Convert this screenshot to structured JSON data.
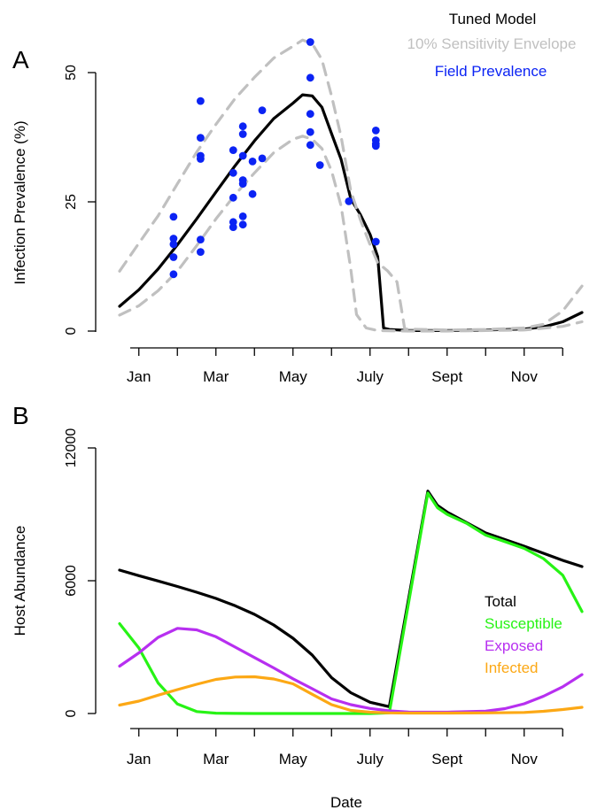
{
  "chart_data": [
    {
      "type": "line",
      "panel_label": "A",
      "ylabel": "Infection Prevalence (%)",
      "xlabel": "",
      "x_unit": "month",
      "xlim": [
        0.5,
        12.5
      ],
      "ylim": [
        0,
        50
      ],
      "x_ticks": [
        1,
        2,
        3,
        4,
        5,
        6,
        7,
        8,
        9,
        10,
        11,
        12
      ],
      "x_tick_labels": [
        {
          "x": 1,
          "label": "Jan"
        },
        {
          "x": 3,
          "label": "Mar"
        },
        {
          "x": 5,
          "label": "May"
        },
        {
          "x": 7,
          "label": "July"
        },
        {
          "x": 9,
          "label": "Sept"
        },
        {
          "x": 11,
          "label": "Nov"
        }
      ],
      "y_ticks": [
        0,
        25,
        50
      ],
      "legend_position": "top-right",
      "series": [
        {
          "name": "Tuned Model",
          "color": "#000000",
          "style": "solid",
          "points": [
            [
              0.5,
              4.8
            ],
            [
              1.0,
              8.0
            ],
            [
              1.5,
              12.0
            ],
            [
              2.0,
              16.7
            ],
            [
              2.5,
              21.7
            ],
            [
              3.0,
              26.9
            ],
            [
              3.5,
              32.0
            ],
            [
              4.0,
              36.8
            ],
            [
              4.5,
              41.1
            ],
            [
              5.0,
              44.1
            ],
            [
              5.25,
              45.7
            ],
            [
              5.5,
              45.5
            ],
            [
              5.75,
              43.3
            ],
            [
              6.0,
              38.2
            ],
            [
              6.25,
              33.2
            ],
            [
              6.5,
              25.6
            ],
            [
              6.75,
              22.5
            ],
            [
              7.0,
              18.7
            ],
            [
              7.2,
              14.4
            ],
            [
              7.35,
              0.6
            ],
            [
              7.5,
              0.3
            ],
            [
              8.0,
              0.1
            ],
            [
              9.0,
              0.1
            ],
            [
              10.0,
              0.2
            ],
            [
              11.0,
              0.4
            ],
            [
              11.5,
              0.8
            ],
            [
              12.0,
              1.8
            ],
            [
              12.5,
              3.6
            ]
          ]
        },
        {
          "name": "10% Sensitivity Envelope",
          "color": "#c0c0c0",
          "style": "dashed",
          "points": [
            [
              0.5,
              11.6
            ],
            [
              1.0,
              17.0
            ],
            [
              1.5,
              22.3
            ],
            [
              2.0,
              28.5
            ],
            [
              2.5,
              34.6
            ],
            [
              3.0,
              40.0
            ],
            [
              3.5,
              45.0
            ],
            [
              4.0,
              49.1
            ],
            [
              4.5,
              52.8
            ],
            [
              5.0,
              55.1
            ],
            [
              5.25,
              56.3
            ],
            [
              5.5,
              55.6
            ],
            [
              5.75,
              52.5
            ],
            [
              6.0,
              45.5
            ],
            [
              6.25,
              37.6
            ],
            [
              6.5,
              27.1
            ],
            [
              6.75,
              21.5
            ],
            [
              7.0,
              16.7
            ],
            [
              7.2,
              13.2
            ],
            [
              7.45,
              11.7
            ],
            [
              7.7,
              9.5
            ],
            [
              7.9,
              0.4
            ],
            [
              8.5,
              0.3
            ],
            [
              9.0,
              0.2
            ],
            [
              10.0,
              0.3
            ],
            [
              11.0,
              0.6
            ],
            [
              11.5,
              1.3
            ],
            [
              12.0,
              3.9
            ],
            [
              12.5,
              8.7
            ]
          ]
        },
        {
          "name": "10% Sensitivity Envelope",
          "color": "#c0c0c0",
          "style": "dashed",
          "legend": false,
          "points": [
            [
              0.5,
              3.1
            ],
            [
              1.0,
              4.9
            ],
            [
              1.5,
              7.8
            ],
            [
              2.0,
              11.6
            ],
            [
              2.5,
              16.5
            ],
            [
              3.0,
              21.7
            ],
            [
              3.5,
              26.4
            ],
            [
              4.0,
              30.6
            ],
            [
              4.5,
              34.5
            ],
            [
              5.0,
              37.1
            ],
            [
              5.25,
              37.7
            ],
            [
              5.5,
              37.1
            ],
            [
              5.75,
              35.3
            ],
            [
              6.0,
              31.0
            ],
            [
              6.25,
              24.2
            ],
            [
              6.5,
              12.0
            ],
            [
              6.65,
              3.2
            ],
            [
              6.9,
              0.6
            ],
            [
              7.2,
              0.1
            ],
            [
              8.0,
              0.0
            ],
            [
              9.0,
              0.0
            ],
            [
              10.0,
              0.1
            ],
            [
              11.0,
              0.2
            ],
            [
              12.0,
              0.9
            ],
            [
              12.5,
              1.8
            ]
          ]
        }
      ],
      "scatter": {
        "name": "Field Prevalence",
        "color": "#0b23f4",
        "points": [
          [
            1.9,
            22.1
          ],
          [
            1.9,
            17.9
          ],
          [
            1.9,
            16.8
          ],
          [
            1.9,
            14.3
          ],
          [
            1.9,
            11.0
          ],
          [
            2.6,
            44.5
          ],
          [
            2.6,
            37.4
          ],
          [
            2.6,
            33.9
          ],
          [
            2.6,
            33.3
          ],
          [
            2.6,
            17.7
          ],
          [
            2.6,
            15.3
          ],
          [
            3.45,
            35.0
          ],
          [
            3.45,
            30.6
          ],
          [
            3.45,
            25.8
          ],
          [
            3.45,
            21.1
          ],
          [
            3.45,
            20.1
          ],
          [
            3.7,
            39.6
          ],
          [
            3.7,
            38.1
          ],
          [
            3.7,
            33.9
          ],
          [
            3.7,
            29.2
          ],
          [
            3.7,
            28.5
          ],
          [
            3.7,
            22.2
          ],
          [
            3.7,
            20.6
          ],
          [
            3.95,
            32.8
          ],
          [
            3.95,
            26.5
          ],
          [
            4.2,
            42.7
          ],
          [
            4.2,
            33.4
          ],
          [
            5.45,
            55.9
          ],
          [
            5.45,
            49.0
          ],
          [
            5.45,
            42.0
          ],
          [
            5.45,
            38.5
          ],
          [
            5.45,
            36.0
          ],
          [
            5.7,
            32.1
          ],
          [
            6.45,
            25.1
          ],
          [
            7.15,
            38.8
          ],
          [
            7.15,
            36.9
          ],
          [
            7.15,
            36.2
          ],
          [
            7.15,
            35.8
          ],
          [
            7.15,
            17.3
          ]
        ]
      }
    },
    {
      "type": "line",
      "panel_label": "B",
      "ylabel": "Host Abundance",
      "xlabel": "Date",
      "x_unit": "month",
      "xlim": [
        0.5,
        12.5
      ],
      "ylim": [
        0,
        12000
      ],
      "x_ticks": [
        1,
        2,
        3,
        4,
        5,
        6,
        7,
        8,
        9,
        10,
        11,
        12
      ],
      "x_tick_labels": [
        {
          "x": 1,
          "label": "Jan"
        },
        {
          "x": 3,
          "label": "Mar"
        },
        {
          "x": 5,
          "label": "May"
        },
        {
          "x": 7,
          "label": "July"
        },
        {
          "x": 9,
          "label": "Sept"
        },
        {
          "x": 11,
          "label": "Nov"
        }
      ],
      "y_ticks": [
        0,
        6000,
        12000
      ],
      "legend_position": "right",
      "series": [
        {
          "name": "Total",
          "color": "#000000",
          "style": "solid",
          "points": [
            [
              0.5,
              6480
            ],
            [
              1.0,
              6230
            ],
            [
              1.5,
              5990
            ],
            [
              2.0,
              5740
            ],
            [
              2.5,
              5480
            ],
            [
              3.0,
              5200
            ],
            [
              3.5,
              4870
            ],
            [
              4.0,
              4480
            ],
            [
              4.5,
              4000
            ],
            [
              5.0,
              3400
            ],
            [
              5.5,
              2640
            ],
            [
              6.0,
              1620
            ],
            [
              6.5,
              940
            ],
            [
              7.0,
              510
            ],
            [
              7.5,
              310
            ],
            [
              8.5,
              10050
            ],
            [
              8.75,
              9400
            ],
            [
              9.0,
              9100
            ],
            [
              10.0,
              8160
            ],
            [
              11.0,
              7560
            ],
            [
              12.0,
              6920
            ],
            [
              12.5,
              6640
            ]
          ]
        },
        {
          "name": "Susceptible",
          "color": "#27f315",
          "style": "solid",
          "points": [
            [
              0.5,
              4060
            ],
            [
              1.0,
              2960
            ],
            [
              1.5,
              1380
            ],
            [
              2.0,
              430
            ],
            [
              2.5,
              90
            ],
            [
              3.0,
              15
            ],
            [
              3.5,
              5
            ],
            [
              4.0,
              0
            ],
            [
              5.0,
              0
            ],
            [
              6.0,
              0
            ],
            [
              7.0,
              0
            ],
            [
              7.5,
              30
            ],
            [
              8.5,
              9960
            ],
            [
              8.75,
              9300
            ],
            [
              9.0,
              9000
            ],
            [
              9.5,
              8600
            ],
            [
              10.0,
              8060
            ],
            [
              10.5,
              7770
            ],
            [
              11.0,
              7460
            ],
            [
              11.5,
              7000
            ],
            [
              12.0,
              6250
            ],
            [
              12.5,
              4610
            ]
          ]
        },
        {
          "name": "Exposed",
          "color": "#b72ff0",
          "style": "solid",
          "points": [
            [
              0.5,
              2140
            ],
            [
              1.0,
              2740
            ],
            [
              1.5,
              3440
            ],
            [
              2.0,
              3850
            ],
            [
              2.5,
              3780
            ],
            [
              3.0,
              3470
            ],
            [
              3.5,
              3000
            ],
            [
              4.0,
              2530
            ],
            [
              4.5,
              2060
            ],
            [
              5.0,
              1570
            ],
            [
              5.5,
              1120
            ],
            [
              6.0,
              660
            ],
            [
              6.5,
              400
            ],
            [
              7.0,
              230
            ],
            [
              7.5,
              120
            ],
            [
              8.0,
              70
            ],
            [
              8.5,
              60
            ],
            [
              9.0,
              60
            ],
            [
              10.0,
              110
            ],
            [
              10.5,
              220
            ],
            [
              11.0,
              440
            ],
            [
              11.5,
              780
            ],
            [
              12.0,
              1210
            ],
            [
              12.5,
              1760
            ]
          ]
        },
        {
          "name": "Infected",
          "color": "#fca815",
          "style": "solid",
          "points": [
            [
              0.5,
              380
            ],
            [
              1.0,
              560
            ],
            [
              1.5,
              830
            ],
            [
              2.0,
              1080
            ],
            [
              2.5,
              1320
            ],
            [
              3.0,
              1540
            ],
            [
              3.5,
              1650
            ],
            [
              4.0,
              1660
            ],
            [
              4.5,
              1560
            ],
            [
              5.0,
              1340
            ],
            [
              5.5,
              870
            ],
            [
              6.0,
              400
            ],
            [
              6.5,
              140
            ],
            [
              7.0,
              60
            ],
            [
              7.5,
              30
            ],
            [
              8.0,
              20
            ],
            [
              9.0,
              20
            ],
            [
              10.0,
              30
            ],
            [
              11.0,
              50
            ],
            [
              11.5,
              100
            ],
            [
              12.0,
              180
            ],
            [
              12.5,
              280
            ]
          ]
        }
      ]
    }
  ]
}
